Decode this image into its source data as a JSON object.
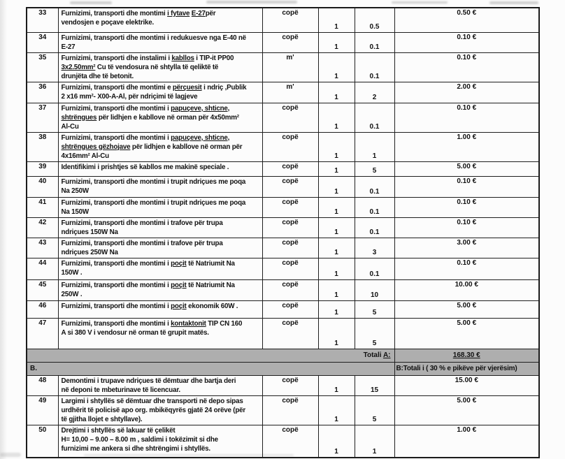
{
  "document": {
    "sections": {
      "total_a": {
        "label_prefix": "Totali ",
        "label_emph": "A:",
        "value": "168.30 €"
      },
      "section_b": {
        "label": "B.",
        "note": "B:Totali i ( 30 % e pikëve për vjerësim)"
      }
    },
    "rows_a": [
      {
        "no": "33",
        "unit": "copë",
        "qty1": "1",
        "qty2": "0.5",
        "price": "0.50 €",
        "desc": [
          {
            "t": "Furnizimi, transporti dhe montimi "
          },
          {
            "t": "i fytave",
            "u": true
          },
          {
            "t": " "
          },
          {
            "t": "E-27",
            "u": true
          },
          {
            "t": "për"
          },
          {
            "br": true
          },
          {
            "t": "vendosjen e poçave elektrike."
          }
        ]
      },
      {
        "no": "34",
        "unit": "copë",
        "qty1": "1",
        "qty2": "0.1",
        "price": "0.10 €",
        "desc": [
          {
            "t": "Furnizimi, transporti dhe montimi i redukuesve nga E-40 në"
          },
          {
            "br": true
          },
          {
            "t": "E-27"
          }
        ]
      },
      {
        "no": "35",
        "unit": "m'",
        "qty1": "1",
        "qty2": "0.1",
        "price": "0.10 €",
        "desc": [
          {
            "t": "Furnizimi, transporti dhe instalimi i "
          },
          {
            "t": "kabllos",
            "u": true
          },
          {
            "t": " i TIP-it PP00"
          },
          {
            "br": true
          },
          {
            "t": "3x2.50mm²",
            "u": true
          },
          {
            "t": " Cu të vendosura në shtylla të qeliktë të"
          },
          {
            "br": true
          },
          {
            "t": "drunjëta dhe të betonit."
          }
        ]
      },
      {
        "no": "36",
        "unit": "m'",
        "qty1": "1",
        "qty2": "2",
        "price": "2.00 €",
        "desc": [
          {
            "t": "Furnizimi, transporti dhe montimi e "
          },
          {
            "t": "përçuesit",
            "u": true
          },
          {
            "t": " i ndriç ,Publik"
          },
          {
            "br": true
          },
          {
            "t": "2 x16 mm²- X00-A-Al, për ndriçimi të lagjeve"
          }
        ]
      },
      {
        "no": "37",
        "unit": "copë",
        "qty1": "1",
        "qty2": "0.1",
        "price": "0.10 €",
        "desc": [
          {
            "t": "Furnizimi, transporti dhe montimi i "
          },
          {
            "t": "papuçeve, shticne,",
            "u": true
          },
          {
            "br": true
          },
          {
            "t": "shtrëngues",
            "u": true
          },
          {
            "t": " për lidhjen e kabllove në orman për 4x50mm²"
          },
          {
            "br": true
          },
          {
            "t": "Al-Cu"
          }
        ]
      },
      {
        "no": "38",
        "unit": "copë",
        "qty1": "1",
        "qty2": "1",
        "price": "1.00 €",
        "desc": [
          {
            "t": "Furnizimi, transporti dhe montimi i "
          },
          {
            "t": "papuçeve, shticne,",
            "u": true
          },
          {
            "br": true
          },
          {
            "t": "shtrëngues gëzhojave",
            "u": true
          },
          {
            "t": " për lidhjen e kabllove në orman për"
          },
          {
            "br": true
          },
          {
            "t": "4x16mm² Al-Cu"
          }
        ]
      },
      {
        "no": "39",
        "unit": "copë",
        "qty1": "1",
        "qty2": "5",
        "price": "5.00 €",
        "desc": [
          {
            "t": "Identifikimi i prishtjes së kabllos me makinë speciale ."
          }
        ]
      },
      {
        "no": "40",
        "unit": "copë",
        "qty1": "1",
        "qty2": "0.1",
        "price": "0.10 €",
        "desc": [
          {
            "t": "Furnizimi, transporti dhe montimi i trupit ndriçues me poqa"
          },
          {
            "br": true
          },
          {
            "t": "Na 250W"
          }
        ]
      },
      {
        "no": "41",
        "unit": "copë",
        "qty1": "1",
        "qty2": "0.1",
        "price": "0.10 €",
        "desc": [
          {
            "t": "Furnizimi, transporti dhe montimi i trupit ndriçues me poqa"
          },
          {
            "br": true
          },
          {
            "t": "Na 150W"
          }
        ]
      },
      {
        "no": "42",
        "unit": "copë",
        "qty1": "1",
        "qty2": "0.1",
        "price": "0.10 €",
        "desc": [
          {
            "t": "Furnizimi, transporti dhe montimi i trafove për trupa"
          },
          {
            "br": true
          },
          {
            "t": "ndriçues 150W Na"
          }
        ]
      },
      {
        "no": "43",
        "unit": "copë",
        "qty1": "1",
        "qty2": "3",
        "price": "3.00 €",
        "desc": [
          {
            "t": "Furnizimi, transporti dhe montimi i trafove për trupa"
          },
          {
            "br": true
          },
          {
            "t": "ndriçues 250W Na"
          }
        ]
      },
      {
        "no": "44",
        "unit": "copë",
        "qty1": "1",
        "qty2": "0.1",
        "price": "0.10 €",
        "desc": [
          {
            "t": "Furnizimi, transporti dhe montimi i "
          },
          {
            "t": "poçit",
            "u": true
          },
          {
            "t": " të Natriumit Na"
          },
          {
            "br": true
          },
          {
            "t": "150W ."
          }
        ]
      },
      {
        "no": "45",
        "unit": "copë",
        "qty1": "1",
        "qty2": "10",
        "price": "10.00 €",
        "desc": [
          {
            "t": "Furnizimi, transporti dhe montimi i "
          },
          {
            "t": "poçit",
            "u": true
          },
          {
            "t": " të Natriumit Na"
          },
          {
            "br": true
          },
          {
            "t": "250W ."
          }
        ]
      },
      {
        "no": "46",
        "unit": "copë",
        "qty1": "1",
        "qty2": "5",
        "price": "5.00 €",
        "desc": [
          {
            "t": "Furnizimi, transporti dhe montimi i "
          },
          {
            "t": "poçit",
            "u": true
          },
          {
            "t": " ekonomik 60W ."
          }
        ]
      },
      {
        "no": "47",
        "unit": "copë",
        "qty1": "1",
        "qty2": "5",
        "price": "5.00 €",
        "desc": [
          {
            "t": "Furnizimi, transporti dhe montimi i "
          },
          {
            "t": "kontaktonit",
            "u": true
          },
          {
            "t": " TIP CN 160"
          },
          {
            "br": true
          },
          {
            "t": "A si  380 V i vendosur në orman të grupit matës."
          }
        ]
      }
    ],
    "rows_b": [
      {
        "no": "48",
        "unit": "copë",
        "qty1": "1",
        "qty2": "15",
        "price": "15.00 €",
        "desc": [
          {
            "t": "Demontimi i trupave ndriçues të dëmtuar dhe bartja deri"
          },
          {
            "br": true
          },
          {
            "t": "në deponi te mbeturinave të licencuar."
          }
        ]
      },
      {
        "no": "49",
        "unit": "copë",
        "qty1": "1",
        "qty2": "5",
        "price": "5.00 €",
        "desc": [
          {
            "t": "Largimi i shtyllës së dëmtuar  dhe transporti në depo sipas"
          },
          {
            "br": true
          },
          {
            "t": "urdhërit të policisë apo org. mbikëqyrës gjatë 24 orëve (për"
          },
          {
            "br": true
          },
          {
            "t": "të gjitha llojet e shtyllave)."
          }
        ]
      },
      {
        "no": "50",
        "unit": "copë",
        "qty1": "1",
        "qty2": "1",
        "price": "1.00 €",
        "desc": [
          {
            "t": "Drejtimi i shtyllës së lakuar të çelikët"
          },
          {
            "br": true
          },
          {
            "t": "H= 10,00 – 9.00 – 8.00 m ,  saldimi i tokëzimit si dhe"
          },
          {
            "br": true
          },
          {
            "t": "furnizimi me ankera si dhe shtrëngimi  i shtyllës."
          }
        ]
      }
    ]
  }
}
